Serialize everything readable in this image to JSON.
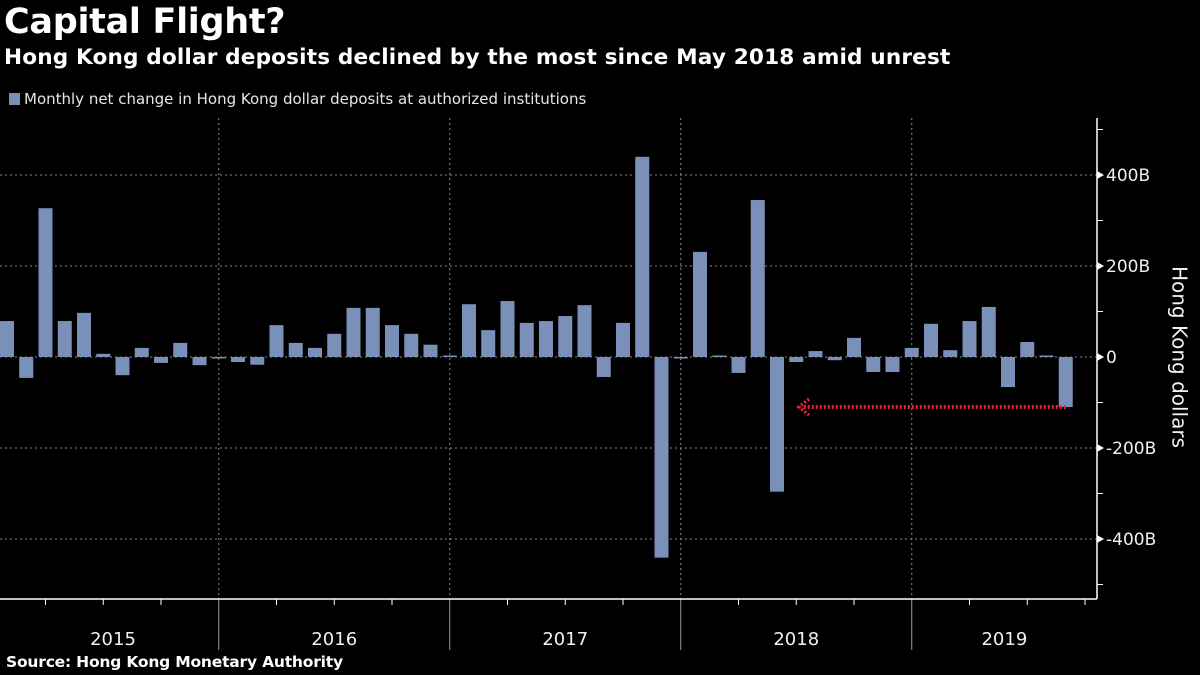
{
  "title": "Capital Flight?",
  "subtitle": "Hong Kong dollar deposits declined by the most since May 2018 amid unrest",
  "source": "Source: Hong Kong Monetary Authority",
  "colors": {
    "bar": "#7b90b8",
    "arrow": "#e8213c",
    "background": "#000000"
  },
  "chart_data": {
    "type": "bar",
    "title": "Capital Flight?",
    "subtitle": "Hong Kong dollar deposits declined by the most since May 2018 amid unrest",
    "xlabel": "",
    "ylabel": "Hong Kong dollars",
    "ylim": [
      -500,
      500
    ],
    "y_ticks": [
      400,
      200,
      0,
      -200,
      -400
    ],
    "y_tick_labels": [
      "400B",
      "200B",
      "0",
      "-200B",
      "-400B"
    ],
    "x_tick_labels": [
      "2015",
      "2016",
      "2017",
      "2018",
      "2019"
    ],
    "grid": true,
    "legend": {
      "position": "top-left",
      "entries": [
        "Monthly net change in Hong Kong dollar deposits at authorized institutions"
      ]
    },
    "units": "billion HKD",
    "categories": [
      "2015-01",
      "2015-02",
      "2015-03",
      "2015-04",
      "2015-05",
      "2015-06",
      "2015-07",
      "2015-08",
      "2015-09",
      "2015-10",
      "2015-11",
      "2015-12",
      "2016-01",
      "2016-02",
      "2016-03",
      "2016-04",
      "2016-05",
      "2016-06",
      "2016-07",
      "2016-08",
      "2016-09",
      "2016-10",
      "2016-11",
      "2016-12",
      "2017-01",
      "2017-02",
      "2017-03",
      "2017-04",
      "2017-05",
      "2017-06",
      "2017-07",
      "2017-08",
      "2017-09",
      "2017-10",
      "2017-11",
      "2017-12",
      "2018-01",
      "2018-02",
      "2018-03",
      "2018-04",
      "2018-05",
      "2018-06",
      "2018-07",
      "2018-08",
      "2018-09",
      "2018-10",
      "2018-11",
      "2018-12",
      "2019-01",
      "2019-02",
      "2019-03",
      "2019-04",
      "2019-05",
      "2019-06",
      "2019-07",
      "2019-08"
    ],
    "series": [
      {
        "name": "Monthly net change in Hong Kong dollar deposits at authorized institutions",
        "values": [
          79,
          -46,
          327,
          79,
          97,
          7,
          -40,
          20,
          -13,
          31,
          -18,
          -2,
          -11,
          -17,
          70,
          31,
          20,
          51,
          108,
          108,
          70,
          51,
          27,
          2,
          116,
          59,
          123,
          75,
          79,
          90,
          114,
          -44,
          75,
          440,
          -441,
          -2,
          231,
          3,
          -35,
          345,
          -296,
          -11,
          13,
          -7,
          42,
          -33,
          -33,
          20,
          73,
          15,
          79,
          110,
          -66,
          33,
          1,
          -110
        ]
      }
    ],
    "annotations": [
      {
        "type": "arrow",
        "description": "dotted red arrow from latest value back to May 2018 level",
        "from": "2019-08",
        "to": "2018-05",
        "value": -110
      }
    ]
  }
}
